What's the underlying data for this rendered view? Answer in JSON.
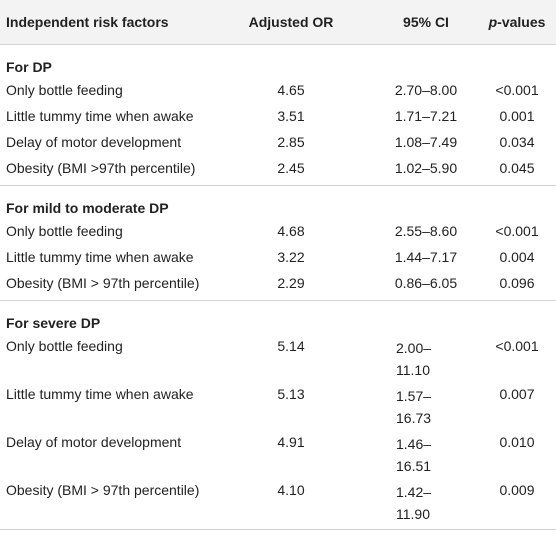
{
  "table": {
    "headers": {
      "factor": "Independent risk factors",
      "or": "Adjusted OR",
      "ci": "95% CI",
      "p_italic": "p",
      "p_rest": "-values"
    },
    "sections": [
      {
        "title": "For DP",
        "rows": [
          {
            "factor": "Only bottle feeding",
            "or": "4.65",
            "ci": "2.70–8.00",
            "p": "<0.001"
          },
          {
            "factor": "Little tummy time when awake",
            "or": "3.51",
            "ci": "1.71–7.21",
            "p": "0.001"
          },
          {
            "factor": "Delay of motor development",
            "or": "2.85",
            "ci": "1.08–7.49",
            "p": "0.034"
          },
          {
            "factor": "Obesity (BMI >97th percentile)",
            "or": "2.45",
            "ci": "1.02–5.90",
            "p": "0.045"
          }
        ]
      },
      {
        "title": "For mild to moderate DP",
        "rows": [
          {
            "factor": "Only bottle feeding",
            "or": "4.68",
            "ci": "2.55–8.60",
            "p": "<0.001"
          },
          {
            "factor": "Little tummy time when awake",
            "or": "3.22",
            "ci": "1.44–7.17",
            "p": "0.004"
          },
          {
            "factor": "Obesity (BMI > 97th percentile)",
            "or": "2.29",
            "ci": "0.86–6.05",
            "p": "0.096"
          }
        ]
      },
      {
        "title": "For severe DP",
        "rows": [
          {
            "factor": "Only bottle feeding",
            "or": "5.14",
            "ci_line1": "2.00–",
            "ci_line2": "11.10",
            "p": "<0.001"
          },
          {
            "factor": "Little tummy time when awake",
            "or": "5.13",
            "ci_line1": "1.57–",
            "ci_line2": "16.73",
            "p": "0.007"
          },
          {
            "factor": "Delay of motor development",
            "or": "4.91",
            "ci_line1": "1.46–",
            "ci_line2": "16.51",
            "p": "0.010"
          },
          {
            "factor": "Obesity (BMI > 97th percentile)",
            "or": "4.10",
            "ci_line1": "1.42–",
            "ci_line2": "11.90",
            "p": "0.009"
          }
        ]
      }
    ]
  }
}
